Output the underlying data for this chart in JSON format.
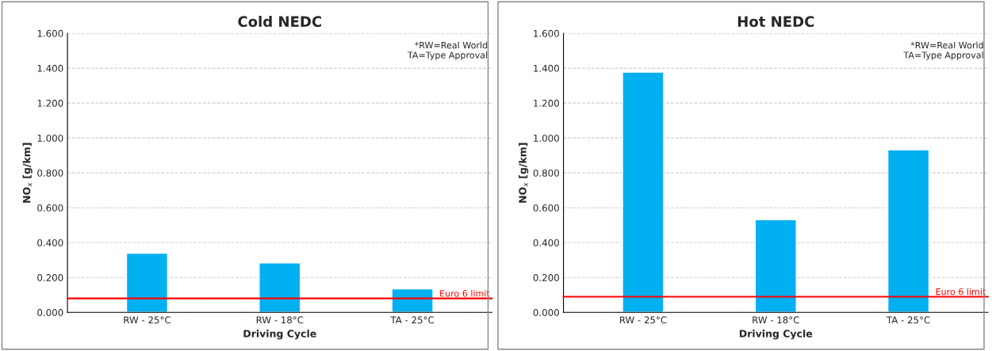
{
  "chart_data": [
    {
      "type": "bar",
      "title": "Cold NEDC",
      "xlabel": "Driving Cycle",
      "ylabel": "NO$_{x}$ [g/km]",
      "categories": [
        "RW - 25°C",
        "RW - 18°C",
        "TA - 25°C"
      ],
      "values": [
        0.34,
        0.284,
        0.135
      ],
      "color": "#00b0f0",
      "ylim": [
        0,
        1.6
      ],
      "yticks": [
        {
          "value": 0,
          "label": "0.000"
        },
        {
          "value": 0.2,
          "label": "0.200"
        },
        {
          "value": 0.4,
          "label": "0.400"
        },
        {
          "value": 0.6,
          "label": "0.600"
        },
        {
          "value": 0.8,
          "label": "0.800"
        },
        {
          "value": 1.0,
          "label": "1.000"
        },
        {
          "value": 1.2,
          "label": "1.200"
        },
        {
          "value": 1.4,
          "label": "1.400"
        },
        {
          "value": 1.6,
          "label": "1.600"
        }
      ],
      "grid": "y",
      "ref_lines": [
        {
          "axis": "y",
          "value": 0.08,
          "label": "Euro 6 limit",
          "color": "#ff0000"
        }
      ],
      "annotations": [
        "*RW=Real World\n TA=Type Approval"
      ]
    },
    {
      "type": "bar",
      "title": "Hot NEDC",
      "xlabel": "Driving Cycle",
      "ylabel": "NO$_{x}$ [g/km]",
      "categories": [
        "RW - 25°C",
        "RW - 18°C",
        "TA - 25°C"
      ],
      "values": [
        1.378,
        0.531,
        0.932
      ],
      "color": "#00b0f0",
      "ylim": [
        0,
        1.6
      ],
      "yticks": [
        {
          "value": 0,
          "label": "0.000"
        },
        {
          "value": 0.2,
          "label": "0.200"
        },
        {
          "value": 0.4,
          "label": "0.400"
        },
        {
          "value": 0.6,
          "label": "0.600"
        },
        {
          "value": 0.8,
          "label": "0.800"
        },
        {
          "value": 1.0,
          "label": "1.000"
        },
        {
          "value": 1.2,
          "label": "1.200"
        },
        {
          "value": 1.4,
          "label": "1.400"
        },
        {
          "value": 1.6,
          "label": "1.600"
        }
      ],
      "grid": "y",
      "ref_lines": [
        {
          "axis": "y",
          "value": 0.09,
          "label": "Euro 6 limit",
          "color": "#ff0000"
        }
      ],
      "annotations": [
        "*RW=Real World\n TA=Type Approval"
      ]
    }
  ]
}
